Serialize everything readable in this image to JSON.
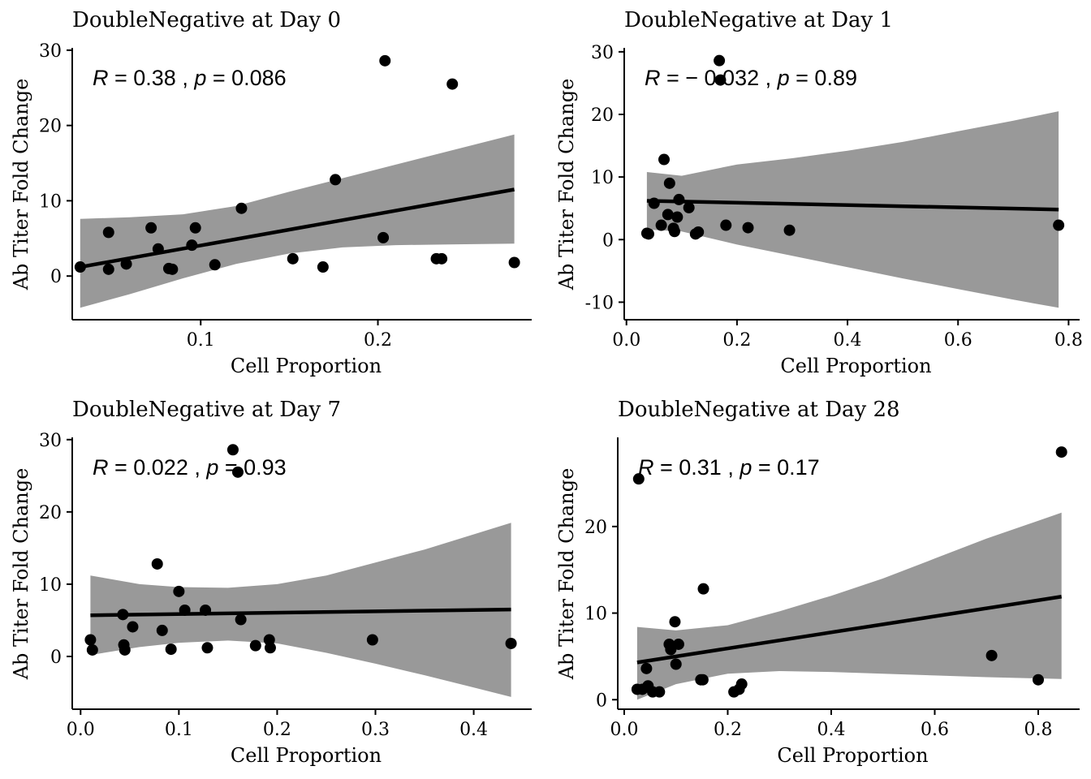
{
  "chart_data": [
    {
      "type": "scatter",
      "title": "DoubleNegative at Day 0",
      "xlabel": "Cell Proportion",
      "ylabel": "Ab Titer Fold Change",
      "xlim": [
        0.0275,
        0.2868
      ],
      "ylim": [
        -5.8,
        30.2
      ],
      "xticks": [
        0.1,
        0.2
      ],
      "xtick_labels": [
        "0.1",
        "0.2"
      ],
      "yticks": [
        0,
        10,
        20,
        30
      ],
      "ytick_labels": [
        "0",
        "10",
        "20",
        "30"
      ],
      "annotation": {
        "r_label": "R",
        "r_value": "0.38",
        "p_label": "p",
        "p_value": "0.086"
      },
      "points": [
        {
          "x": 0.032,
          "y": 1.2
        },
        {
          "x": 0.048,
          "y": 5.8
        },
        {
          "x": 0.048,
          "y": 0.9
        },
        {
          "x": 0.058,
          "y": 1.6
        },
        {
          "x": 0.072,
          "y": 6.4
        },
        {
          "x": 0.076,
          "y": 3.6
        },
        {
          "x": 0.082,
          "y": 1.0
        },
        {
          "x": 0.084,
          "y": 0.9
        },
        {
          "x": 0.095,
          "y": 4.1
        },
        {
          "x": 0.097,
          "y": 6.4
        },
        {
          "x": 0.108,
          "y": 1.5
        },
        {
          "x": 0.123,
          "y": 9.0
        },
        {
          "x": 0.152,
          "y": 2.3
        },
        {
          "x": 0.169,
          "y": 1.2
        },
        {
          "x": 0.176,
          "y": 12.8
        },
        {
          "x": 0.203,
          "y": 5.1
        },
        {
          "x": 0.204,
          "y": 28.6
        },
        {
          "x": 0.233,
          "y": 2.3
        },
        {
          "x": 0.236,
          "y": 2.3
        },
        {
          "x": 0.242,
          "y": 25.5
        },
        {
          "x": 0.277,
          "y": 1.8
        }
      ],
      "fit": {
        "x": [
          0.032,
          0.277
        ],
        "y": [
          1.2,
          11.5
        ]
      },
      "ci": {
        "x": [
          0.032,
          0.06,
          0.09,
          0.12,
          0.15,
          0.18,
          0.21,
          0.24,
          0.277
        ],
        "lower": [
          -4.2,
          -2.4,
          -0.3,
          1.6,
          3.0,
          3.8,
          4.1,
          4.2,
          4.3
        ],
        "upper": [
          7.6,
          7.8,
          8.2,
          9.3,
          11.2,
          13.0,
          14.8,
          16.6,
          18.8
        ]
      }
    },
    {
      "type": "scatter",
      "title": "DoubleNegative at Day 1",
      "xlabel": "Cell Proportion",
      "ylabel": "Ab Titer Fold Change",
      "xlim": [
        -0.004,
        0.82
      ],
      "ylim": [
        -12.8,
        30.5
      ],
      "xticks": [
        0.0,
        0.2,
        0.4,
        0.6,
        0.8
      ],
      "xtick_labels": [
        "0.0",
        "0.2",
        "0.4",
        "0.6",
        "0.8"
      ],
      "yticks": [
        -10,
        0,
        10,
        20,
        30
      ],
      "ytick_labels": [
        "-10",
        "0",
        "10",
        "20",
        "30"
      ],
      "annotation": {
        "r_label": "R",
        "r_value": "− 0.032",
        "p_label": "p",
        "p_value": "0.89"
      },
      "points": [
        {
          "x": 0.037,
          "y": 1.0
        },
        {
          "x": 0.04,
          "y": 0.9
        },
        {
          "x": 0.05,
          "y": 5.8
        },
        {
          "x": 0.063,
          "y": 2.3
        },
        {
          "x": 0.068,
          "y": 12.8
        },
        {
          "x": 0.075,
          "y": 4.0
        },
        {
          "x": 0.078,
          "y": 9.0
        },
        {
          "x": 0.085,
          "y": 1.8
        },
        {
          "x": 0.087,
          "y": 1.3
        },
        {
          "x": 0.092,
          "y": 3.6
        },
        {
          "x": 0.095,
          "y": 6.4
        },
        {
          "x": 0.113,
          "y": 5.1
        },
        {
          "x": 0.125,
          "y": 0.9
        },
        {
          "x": 0.13,
          "y": 1.2
        },
        {
          "x": 0.168,
          "y": 28.6
        },
        {
          "x": 0.17,
          "y": 25.5
        },
        {
          "x": 0.18,
          "y": 2.3
        },
        {
          "x": 0.22,
          "y": 1.9
        },
        {
          "x": 0.295,
          "y": 1.5
        },
        {
          "x": 0.782,
          "y": 2.3
        }
      ],
      "fit": {
        "x": [
          0.037,
          0.782
        ],
        "y": [
          6.2,
          4.8
        ]
      },
      "ci": {
        "x": [
          0.037,
          0.1,
          0.2,
          0.3,
          0.4,
          0.5,
          0.6,
          0.7,
          0.782
        ],
        "lower": [
          1.6,
          1.3,
          -0.8,
          -2.6,
          -4.4,
          -6.2,
          -7.9,
          -9.6,
          -10.9
        ],
        "upper": [
          10.8,
          10.2,
          12.0,
          13.0,
          14.2,
          15.6,
          17.3,
          19.0,
          20.5
        ]
      }
    },
    {
      "type": "scatter",
      "title": "DoubleNegative at Day 7",
      "xlabel": "Cell Proportion",
      "ylabel": "Ab Titer Fold Change",
      "xlim": [
        -0.0085,
        0.459
      ],
      "ylim": [
        -7.3,
        30.2
      ],
      "xticks": [
        0.0,
        0.1,
        0.2,
        0.3,
        0.4
      ],
      "xtick_labels": [
        "0.0",
        "0.1",
        "0.2",
        "0.3",
        "0.4"
      ],
      "yticks": [
        0,
        10,
        20,
        30
      ],
      "ytick_labels": [
        "0",
        "10",
        "20",
        "30"
      ],
      "annotation": {
        "r_label": "R",
        "r_value": "0.022",
        "p_label": "p",
        "p_value": "0.93"
      },
      "points": [
        {
          "x": 0.01,
          "y": 2.3
        },
        {
          "x": 0.012,
          "y": 0.9
        },
        {
          "x": 0.043,
          "y": 5.8
        },
        {
          "x": 0.044,
          "y": 1.6
        },
        {
          "x": 0.045,
          "y": 0.9
        },
        {
          "x": 0.053,
          "y": 4.1
        },
        {
          "x": 0.078,
          "y": 12.8
        },
        {
          "x": 0.083,
          "y": 3.6
        },
        {
          "x": 0.092,
          "y": 1.0
        },
        {
          "x": 0.1,
          "y": 9.0
        },
        {
          "x": 0.106,
          "y": 6.4
        },
        {
          "x": 0.127,
          "y": 6.4
        },
        {
          "x": 0.129,
          "y": 1.2
        },
        {
          "x": 0.155,
          "y": 28.6
        },
        {
          "x": 0.16,
          "y": 25.5
        },
        {
          "x": 0.163,
          "y": 5.1
        },
        {
          "x": 0.178,
          "y": 1.5
        },
        {
          "x": 0.192,
          "y": 2.3
        },
        {
          "x": 0.193,
          "y": 1.2
        },
        {
          "x": 0.297,
          "y": 2.3
        },
        {
          "x": 0.438,
          "y": 1.8
        }
      ],
      "fit": {
        "x": [
          0.01,
          0.438
        ],
        "y": [
          5.7,
          6.5
        ]
      },
      "ci": {
        "x": [
          0.01,
          0.06,
          0.1,
          0.15,
          0.2,
          0.25,
          0.3,
          0.35,
          0.4,
          0.438
        ],
        "lower": [
          0.2,
          1.3,
          1.9,
          2.2,
          1.8,
          0.5,
          -1.0,
          -2.6,
          -4.3,
          -5.6
        ],
        "upper": [
          11.2,
          10.0,
          9.6,
          9.5,
          10.0,
          11.2,
          13.0,
          14.8,
          16.9,
          18.5
        ]
      }
    },
    {
      "type": "scatter",
      "title": "DoubleNegative at Day 28",
      "xlabel": "Cell Proportion",
      "ylabel": "Ab Titer Fold Change",
      "xlim": [
        -0.0125,
        0.88
      ],
      "ylim": [
        -1.1,
        30.2
      ],
      "xticks": [
        0.0,
        0.2,
        0.4,
        0.6,
        0.8
      ],
      "xtick_labels": [
        "0.0",
        "0.2",
        "0.4",
        "0.6",
        "0.8"
      ],
      "yticks": [
        0,
        10,
        20
      ],
      "ytick_labels": [
        "0",
        "10",
        "20"
      ],
      "annotation": {
        "r_label": "R",
        "r_value": "0.31",
        "p_label": "p",
        "p_value": "0.17"
      },
      "points": [
        {
          "x": 0.025,
          "y": 1.2
        },
        {
          "x": 0.028,
          "y": 25.5
        },
        {
          "x": 0.035,
          "y": 1.2
        },
        {
          "x": 0.043,
          "y": 3.6
        },
        {
          "x": 0.046,
          "y": 1.6
        },
        {
          "x": 0.055,
          "y": 0.9
        },
        {
          "x": 0.068,
          "y": 0.9
        },
        {
          "x": 0.087,
          "y": 6.4
        },
        {
          "x": 0.09,
          "y": 5.8
        },
        {
          "x": 0.098,
          "y": 9.0
        },
        {
          "x": 0.1,
          "y": 4.1
        },
        {
          "x": 0.105,
          "y": 6.4
        },
        {
          "x": 0.148,
          "y": 2.3
        },
        {
          "x": 0.152,
          "y": 2.3
        },
        {
          "x": 0.153,
          "y": 12.8
        },
        {
          "x": 0.212,
          "y": 0.9
        },
        {
          "x": 0.222,
          "y": 1.2
        },
        {
          "x": 0.227,
          "y": 1.8
        },
        {
          "x": 0.71,
          "y": 5.1
        },
        {
          "x": 0.8,
          "y": 2.3
        },
        {
          "x": 0.845,
          "y": 28.6
        }
      ],
      "fit": {
        "x": [
          0.025,
          0.845
        ],
        "y": [
          4.3,
          11.9
        ]
      },
      "ci": {
        "x": [
          0.025,
          0.1,
          0.2,
          0.3,
          0.4,
          0.5,
          0.6,
          0.7,
          0.845
        ],
        "lower": [
          0.0,
          1.8,
          3.0,
          3.3,
          3.2,
          3.0,
          2.8,
          2.6,
          2.4
        ],
        "upper": [
          8.4,
          8.0,
          8.6,
          10.2,
          12.0,
          14.0,
          16.3,
          18.6,
          21.6
        ]
      }
    }
  ]
}
